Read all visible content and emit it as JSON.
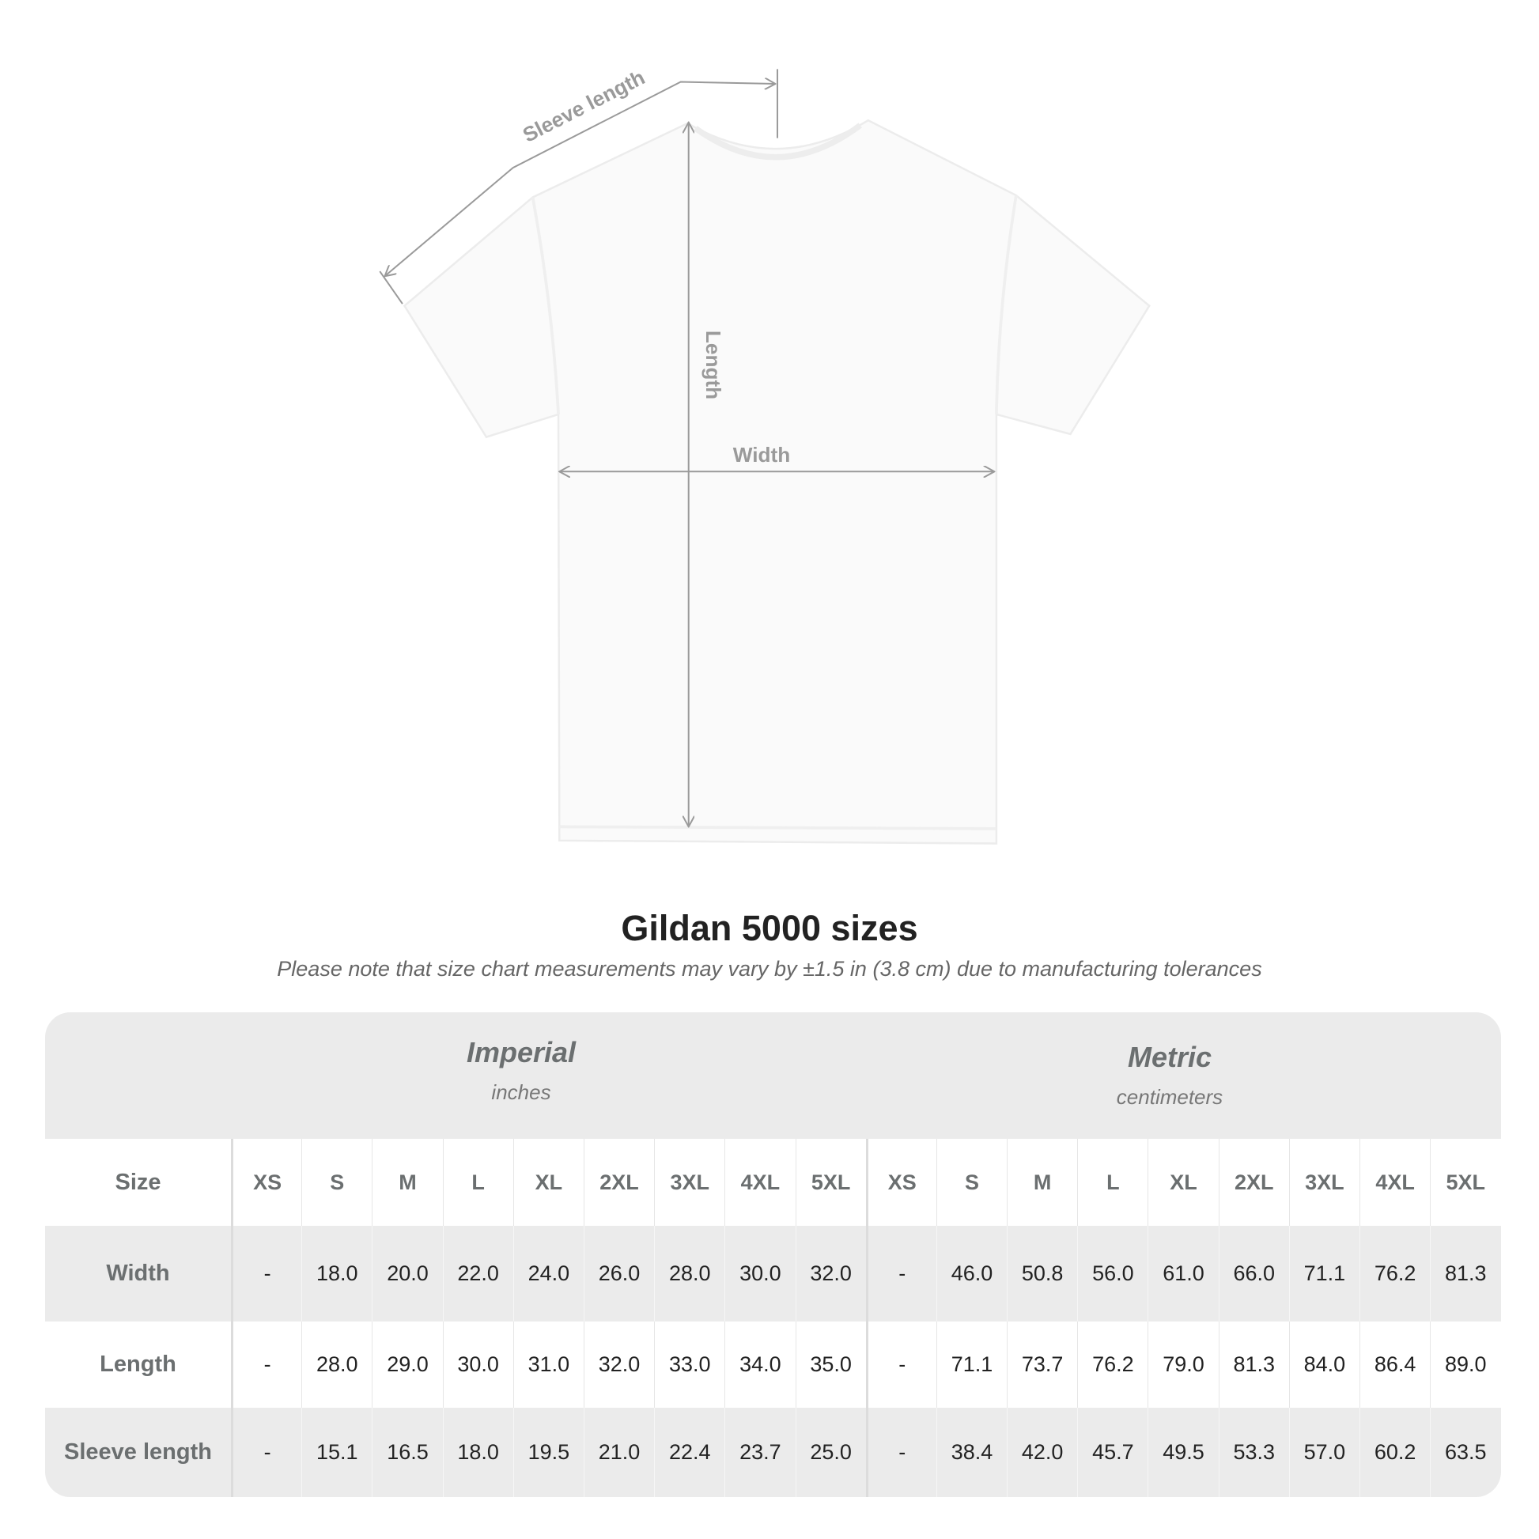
{
  "diagram": {
    "sleeve_label": "Sleeve length",
    "length_label": "Length",
    "width_label": "Width",
    "line_color": "#9a9a9a",
    "shirt_color": "#fafafa"
  },
  "title": "Gildan 5000 sizes",
  "note": "Please note that size chart measurements may vary by ±1.5 in (3.8 cm) due to manufacturing tolerances",
  "table": {
    "imperial": {
      "name": "Imperial",
      "unit": "inches"
    },
    "metric": {
      "name": "Metric",
      "unit": "centimeters"
    },
    "size_label": "Size",
    "sizes": [
      "XS",
      "S",
      "M",
      "L",
      "XL",
      "2XL",
      "3XL",
      "4XL",
      "5XL"
    ],
    "rows": [
      {
        "label": "Width",
        "imperial": [
          "-",
          "18.0",
          "20.0",
          "22.0",
          "24.0",
          "26.0",
          "28.0",
          "30.0",
          "32.0"
        ],
        "metric": [
          "-",
          "46.0",
          "50.8",
          "56.0",
          "61.0",
          "66.0",
          "71.1",
          "76.2",
          "81.3"
        ]
      },
      {
        "label": "Length",
        "imperial": [
          "-",
          "28.0",
          "29.0",
          "30.0",
          "31.0",
          "32.0",
          "33.0",
          "34.0",
          "35.0"
        ],
        "metric": [
          "-",
          "71.1",
          "73.7",
          "76.2",
          "79.0",
          "81.3",
          "84.0",
          "86.4",
          "89.0"
        ]
      },
      {
        "label": "Sleeve length",
        "imperial": [
          "-",
          "15.1",
          "16.5",
          "18.0",
          "19.5",
          "21.0",
          "22.4",
          "23.7",
          "25.0"
        ],
        "metric": [
          "-",
          "38.4",
          "42.0",
          "45.7",
          "49.5",
          "53.3",
          "57.0",
          "60.2",
          "63.5"
        ]
      }
    ],
    "colors": {
      "band": "#ebebeb",
      "label_text": "#6b6f70",
      "value_text": "#222222"
    }
  }
}
